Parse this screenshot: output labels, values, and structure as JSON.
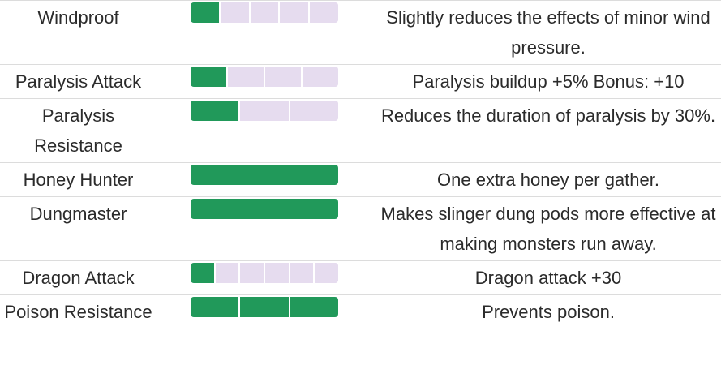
{
  "colors": {
    "filled": "#21995a",
    "empty": "#e6dcef",
    "divider": "#dcdcdc",
    "text": "#2b2b2b"
  },
  "skills": [
    {
      "name": "Windproof",
      "max_level": 5,
      "level": 1,
      "description": "Slightly reduces the effects of minor wind pressure."
    },
    {
      "name": "Paralysis Attack",
      "max_level": 4,
      "level": 1,
      "description": "Paralysis buildup +5% Bonus: +10"
    },
    {
      "name": "Paralysis Resistance",
      "max_level": 3,
      "level": 1,
      "description": "Reduces the duration of paralysis by 30%."
    },
    {
      "name": "Honey Hunter",
      "max_level": 1,
      "level": 1,
      "description": "One extra honey per gather."
    },
    {
      "name": "Dungmaster",
      "max_level": 1,
      "level": 1,
      "description": "Makes slinger dung pods more effective at making monsters run away."
    },
    {
      "name": "Dragon Attack",
      "max_level": 6,
      "level": 1,
      "description": "Dragon attack +30"
    },
    {
      "name": "Poison Resistance",
      "max_level": 3,
      "level": 3,
      "description": "Prevents poison."
    }
  ]
}
